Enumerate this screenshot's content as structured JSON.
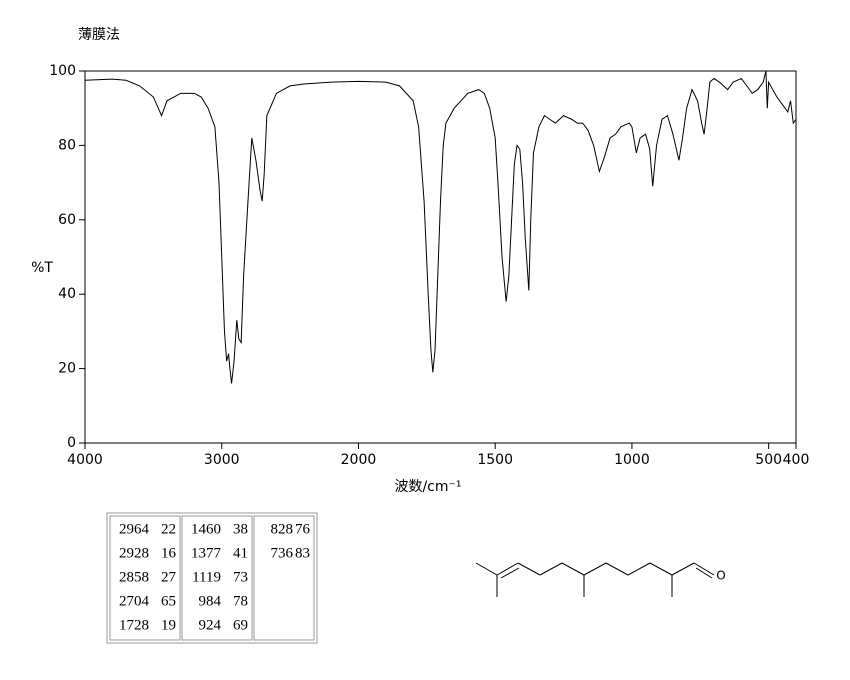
{
  "chart_data": {
    "type": "line",
    "title": "薄膜法",
    "ylabel": "%T",
    "xlabel": "波数/cm⁻¹",
    "xlim": [
      4000,
      400
    ],
    "xscale_break": 2000,
    "xscale_ratio": 2,
    "xticks": [
      4000,
      3000,
      2000,
      1500,
      1000,
      500,
      400
    ],
    "ylim": [
      0,
      100
    ],
    "yticks": [
      0,
      20,
      40,
      60,
      80,
      100
    ],
    "color": "#000000",
    "x": [
      4000,
      3800,
      3700,
      3600,
      3500,
      3440,
      3400,
      3300,
      3200,
      3150,
      3100,
      3050,
      3020,
      3000,
      2980,
      2964,
      2950,
      2940,
      2928,
      2910,
      2890,
      2875,
      2858,
      2840,
      2800,
      2780,
      2750,
      2720,
      2704,
      2690,
      2670,
      2600,
      2500,
      2400,
      2200,
      2000,
      1900,
      1850,
      1800,
      1780,
      1760,
      1745,
      1735,
      1728,
      1720,
      1710,
      1700,
      1690,
      1680,
      1650,
      1600,
      1560,
      1540,
      1520,
      1500,
      1490,
      1475,
      1460,
      1450,
      1440,
      1430,
      1420,
      1410,
      1400,
      1390,
      1377,
      1370,
      1360,
      1340,
      1320,
      1300,
      1280,
      1250,
      1220,
      1200,
      1180,
      1160,
      1140,
      1119,
      1100,
      1080,
      1060,
      1040,
      1010,
      1000,
      984,
      970,
      950,
      935,
      924,
      910,
      890,
      870,
      850,
      828,
      815,
      800,
      780,
      760,
      745,
      736,
      725,
      715,
      700,
      680,
      650,
      630,
      600,
      580,
      560,
      540,
      520,
      510,
      505,
      500,
      470,
      450,
      430,
      420,
      410,
      400
    ],
    "values": [
      97.5,
      97.8,
      97.5,
      96,
      93,
      88,
      92,
      94,
      94,
      93,
      90,
      85,
      70,
      50,
      30,
      22,
      24,
      20,
      16,
      22,
      33,
      28,
      27,
      45,
      70,
      82,
      76,
      68,
      65,
      72,
      88,
      94,
      96,
      96.5,
      97,
      97.2,
      97,
      96,
      92,
      85,
      65,
      40,
      25,
      19,
      25,
      45,
      65,
      80,
      86,
      90,
      94,
      95,
      94,
      90,
      82,
      70,
      50,
      38,
      45,
      60,
      75,
      80,
      79,
      70,
      55,
      41,
      60,
      78,
      85,
      88,
      87,
      86,
      88,
      87,
      86,
      86,
      84,
      80,
      73,
      77,
      82,
      83,
      85,
      86,
      85,
      78,
      82,
      83,
      79,
      69,
      80,
      87,
      88,
      83,
      76,
      82,
      90,
      95,
      92,
      86,
      83,
      90,
      97,
      98,
      97,
      95,
      97,
      98,
      96,
      94,
      95,
      97,
      100,
      90,
      97,
      93,
      91,
      89,
      92,
      86,
      87
    ]
  },
  "peak_table": [
    [
      [
        2964,
        22
      ],
      [
        2928,
        16
      ],
      [
        2858,
        27
      ],
      [
        2704,
        65
      ],
      [
        1728,
        19
      ]
    ],
    [
      [
        1460,
        38
      ],
      [
        1377,
        41
      ],
      [
        1119,
        73
      ],
      [
        984,
        78
      ],
      [
        924,
        69
      ]
    ],
    [
      [
        828,
        76
      ],
      [
        736,
        83
      ]
    ]
  ],
  "structure": {
    "atom_label": "O"
  }
}
